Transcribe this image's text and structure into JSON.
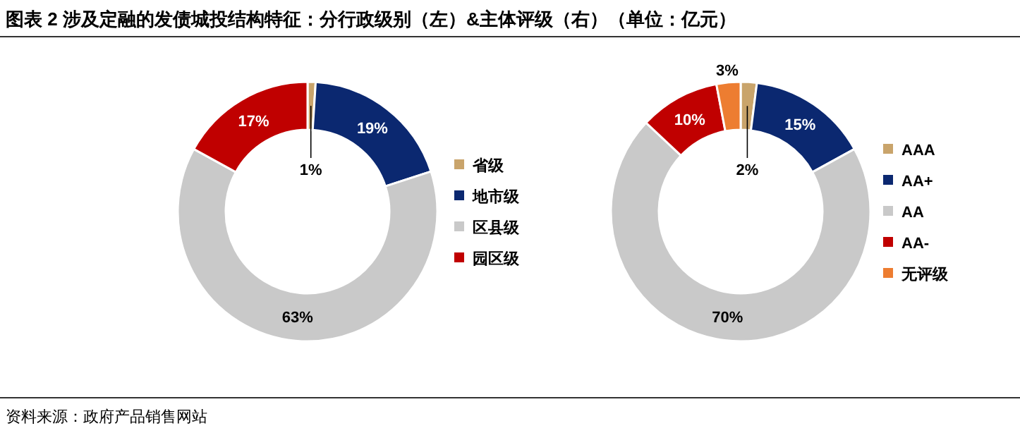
{
  "chart_data": [
    {
      "type": "donut",
      "title": "图表 2 涉及定融的发债城投结构特征：分行政级别（左）&主体评级（右）（单位：亿元）",
      "categories": [
        "省级",
        "地市级",
        "区县级",
        "园区级"
      ],
      "values": [
        1,
        19,
        63,
        17
      ],
      "colors": [
        "#c9a46b",
        "#0b2870",
        "#c9c9c9",
        "#c00000"
      ],
      "value_labels": [
        "1%",
        "19%",
        "63%",
        "17%"
      ],
      "legend": "right"
    },
    {
      "type": "donut",
      "categories": [
        "AAA",
        "AA+",
        "AA",
        "AA-",
        "无评级"
      ],
      "values": [
        2,
        15,
        70,
        10,
        3
      ],
      "colors": [
        "#c9a46b",
        "#0b2870",
        "#c9c9c9",
        "#c00000",
        "#ed7d31"
      ],
      "value_labels": [
        "2%",
        "15%",
        "70%",
        "10%",
        "3%"
      ],
      "legend": "right",
      "annotations": [
        "资料来源：政府产品销售网站"
      ]
    }
  ]
}
